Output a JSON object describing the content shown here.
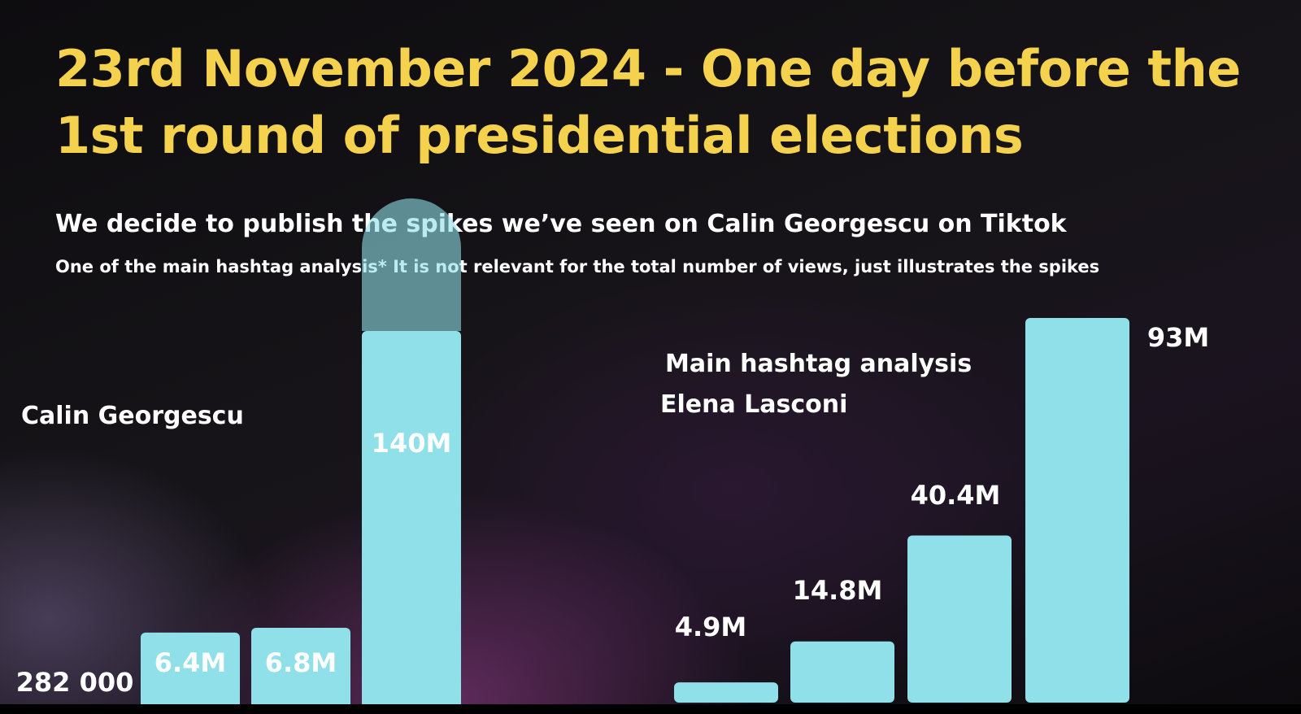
{
  "title": "23rd November 2024 - One day before the 1st round of presidential elections",
  "subtitle": "We decide to publish the spikes we’ve seen on Calin Georgescu on Tiktok",
  "note": "One of the main hashtag analysis* It is not relevant for the total number of views, just illustrates the spikes",
  "colors": {
    "title": "#f4d24e",
    "bar": "#8fe0e8",
    "text": "#ffffff",
    "background": "#141216"
  },
  "chart_data": [
    {
      "type": "bar",
      "title": "Calin Georgescu",
      "values": [
        282000,
        6400000,
        6800000,
        140000000
      ],
      "data_labels": [
        "282 000",
        "6.4M",
        "6.8M",
        "140M"
      ],
      "highlight_note": "last bar extends beyond visible area (translucent overflow)"
    },
    {
      "type": "bar",
      "title": "Main hashtag analysis",
      "subtitle": "Elena Lasconi",
      "values": [
        4900000,
        14800000,
        40400000,
        93000000
      ],
      "data_labels": [
        "4.9M",
        "14.8M",
        "40.4M",
        "93M"
      ]
    }
  ]
}
